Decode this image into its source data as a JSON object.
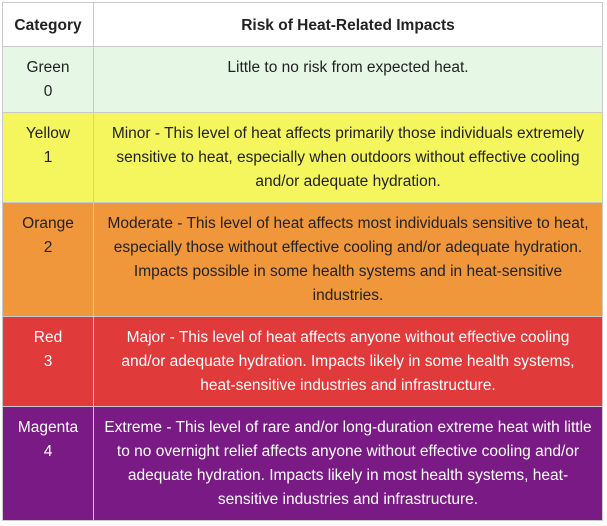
{
  "table": {
    "headers": {
      "category": "Category",
      "risk": "Risk of Heat-Related Impacts"
    },
    "rows": [
      {
        "name": "Green",
        "level": "0",
        "bg": "#e6f7e6",
        "fg": "#222222",
        "description": "Little to no risk from expected heat."
      },
      {
        "name": "Yellow",
        "level": "1",
        "bg": "#f5f55e",
        "fg": "#222222",
        "description": "Minor - This level of heat affects primarily those individuals extremely sensitive to heat, especially when outdoors without effective cooling and/or adequate hydration."
      },
      {
        "name": "Orange",
        "level": "2",
        "bg": "#f0973c",
        "fg": "#222222",
        "description": "Moderate - This level of heat affects most individuals sensitive to heat, especially those without effective cooling and/or adequate hydration. Impacts possible in some health systems and in heat-sensitive industries."
      },
      {
        "name": "Red",
        "level": "3",
        "bg": "#e03a3a",
        "fg": "#ffffff",
        "description": "Major - This level of heat affects anyone without effective cooling and/or adequate hydration. Impacts likely in some health systems, heat-sensitive industries and infrastructure."
      },
      {
        "name": "Magenta",
        "level": "4",
        "bg": "#7a1a85",
        "fg": "#ffffff",
        "description": "Extreme - This level of rare and/or long-duration extreme heat with little to no overnight relief affects anyone without effective cooling and/or adequate hydration. Impacts likely in most health systems, heat-sensitive industries and infrastructure."
      }
    ]
  }
}
